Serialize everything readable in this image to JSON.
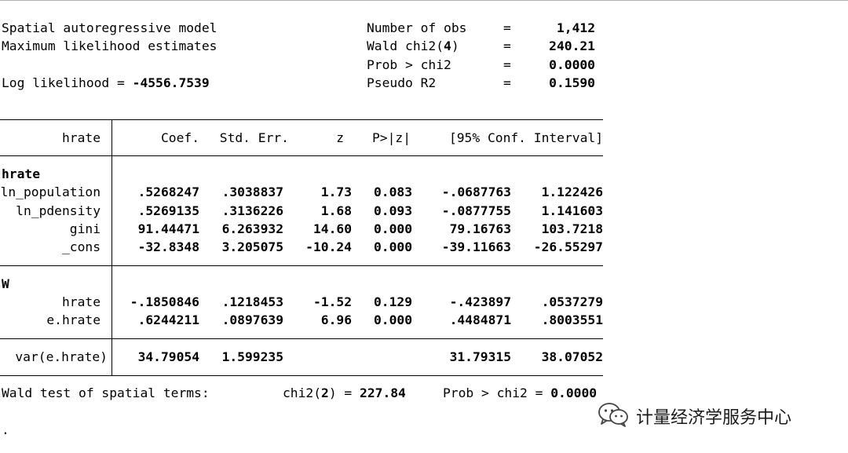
{
  "header": {
    "model_title": "Spatial autoregressive model",
    "method": "Maximum likelihood estimates",
    "loglik_label": "Log likelihood = ",
    "loglik_value": "-4556.7539",
    "stats": [
      {
        "label": "Number of obs",
        "eq": "=",
        "value": "1,412"
      },
      {
        "label": "Wald chi2(4)",
        "eq": "=",
        "value": "240.21"
      },
      {
        "label": "Prob > chi2",
        "eq": "=",
        "value": "0.0000"
      },
      {
        "label": "Pseudo R2",
        "eq": "=",
        "value": "0.1590"
      }
    ]
  },
  "table": {
    "columns": [
      "hrate",
      "Coef.",
      "Std. Err.",
      "z",
      "P>|z|",
      "[95% Conf. Interval]"
    ],
    "section_hrate": "hrate",
    "rows_hrate": [
      {
        "name": "ln_population",
        "coef": ".5268247",
        "se": ".3038837",
        "z": "1.73",
        "p": "0.083",
        "lo": "-.0687763",
        "hi": "1.122426"
      },
      {
        "name": "ln_pdensity",
        "coef": ".5269135",
        "se": ".3136226",
        "z": "1.68",
        "p": "0.093",
        "lo": "-.0877755",
        "hi": "1.141603"
      },
      {
        "name": "gini",
        "coef": "91.44471",
        "se": "6.263932",
        "z": "14.60",
        "p": "0.000",
        "lo": "79.16763",
        "hi": "103.7218"
      },
      {
        "name": "_cons",
        "coef": "-32.8348",
        "se": "3.205075",
        "z": "-10.24",
        "p": "0.000",
        "lo": "-39.11663",
        "hi": "-26.55297"
      }
    ],
    "section_w": "W",
    "rows_w": [
      {
        "name": "hrate",
        "coef": "-.1850846",
        "se": ".1218453",
        "z": "-1.52",
        "p": "0.129",
        "lo": "-.423897",
        "hi": ".0537279"
      },
      {
        "name": "e.hrate",
        "coef": ".6244211",
        "se": ".0897639",
        "z": "6.96",
        "p": "0.000",
        "lo": ".4484871",
        "hi": ".8003551"
      }
    ],
    "var_row": {
      "name": "var(e.hrate)",
      "coef": "34.79054",
      "se": "1.599235",
      "lo": "31.79315",
      "hi": "38.07052"
    }
  },
  "wald_test": {
    "label": "Wald test of spatial terms:",
    "chi_label": "chi2(",
    "chi_df": "2",
    "chi_close": ") = ",
    "chi_value": "227.84",
    "prob_label": "Prob > chi2 = ",
    "prob_value": "0.0000"
  },
  "prompt": ".",
  "watermark": {
    "text": "计量经济学服务中心",
    "icon": "wechat-icon"
  }
}
